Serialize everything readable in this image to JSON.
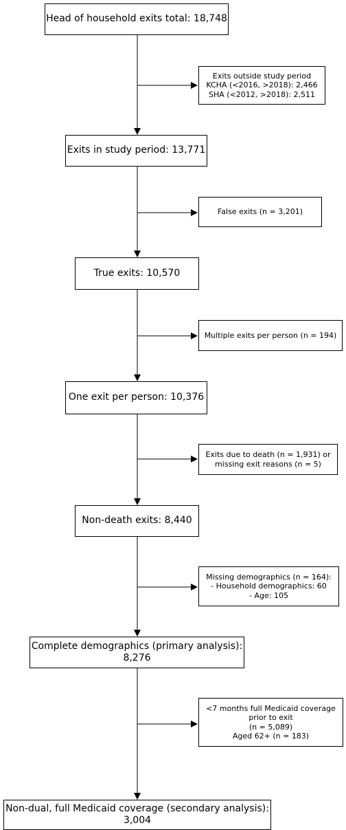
{
  "flowchart": {
    "main_boxes": [
      {
        "lines": [
          "Head of household exits total: 18,748"
        ]
      },
      {
        "lines": [
          "Exits in study period: 13,771"
        ]
      },
      {
        "lines": [
          "True exits: 10,570"
        ]
      },
      {
        "lines": [
          "One exit per person: 10,376"
        ]
      },
      {
        "lines": [
          "Non-death exits: 8,440"
        ]
      },
      {
        "lines": [
          "Complete demographics (primary analysis):",
          "8,276"
        ]
      },
      {
        "lines": [
          "Non-dual, full Medicaid coverage (secondary analysis):",
          "3,004"
        ]
      }
    ],
    "exclusion_boxes": [
      {
        "lines": [
          "Exits outside study period",
          "KCHA (<2016, >2018): 2,466",
          "SHA (<2012, >2018): 2,511"
        ]
      },
      {
        "lines": [
          "False exits (n = 3,201)"
        ]
      },
      {
        "lines": [
          "Multiple exits per person (n = 194)"
        ]
      },
      {
        "lines": [
          "Exits due to death (n = 1,931) or",
          "missing exit reasons (n = 5)"
        ]
      },
      {
        "lines": [
          "Missing demographics (n = 164):",
          "- Household demographics: 60",
          "- Age: 105"
        ]
      },
      {
        "lines": [
          "<7 months full Medicaid coverage",
          "prior to exit",
          "(n = 5,089)",
          "Aged 62+ (n = 183)"
        ]
      }
    ]
  }
}
